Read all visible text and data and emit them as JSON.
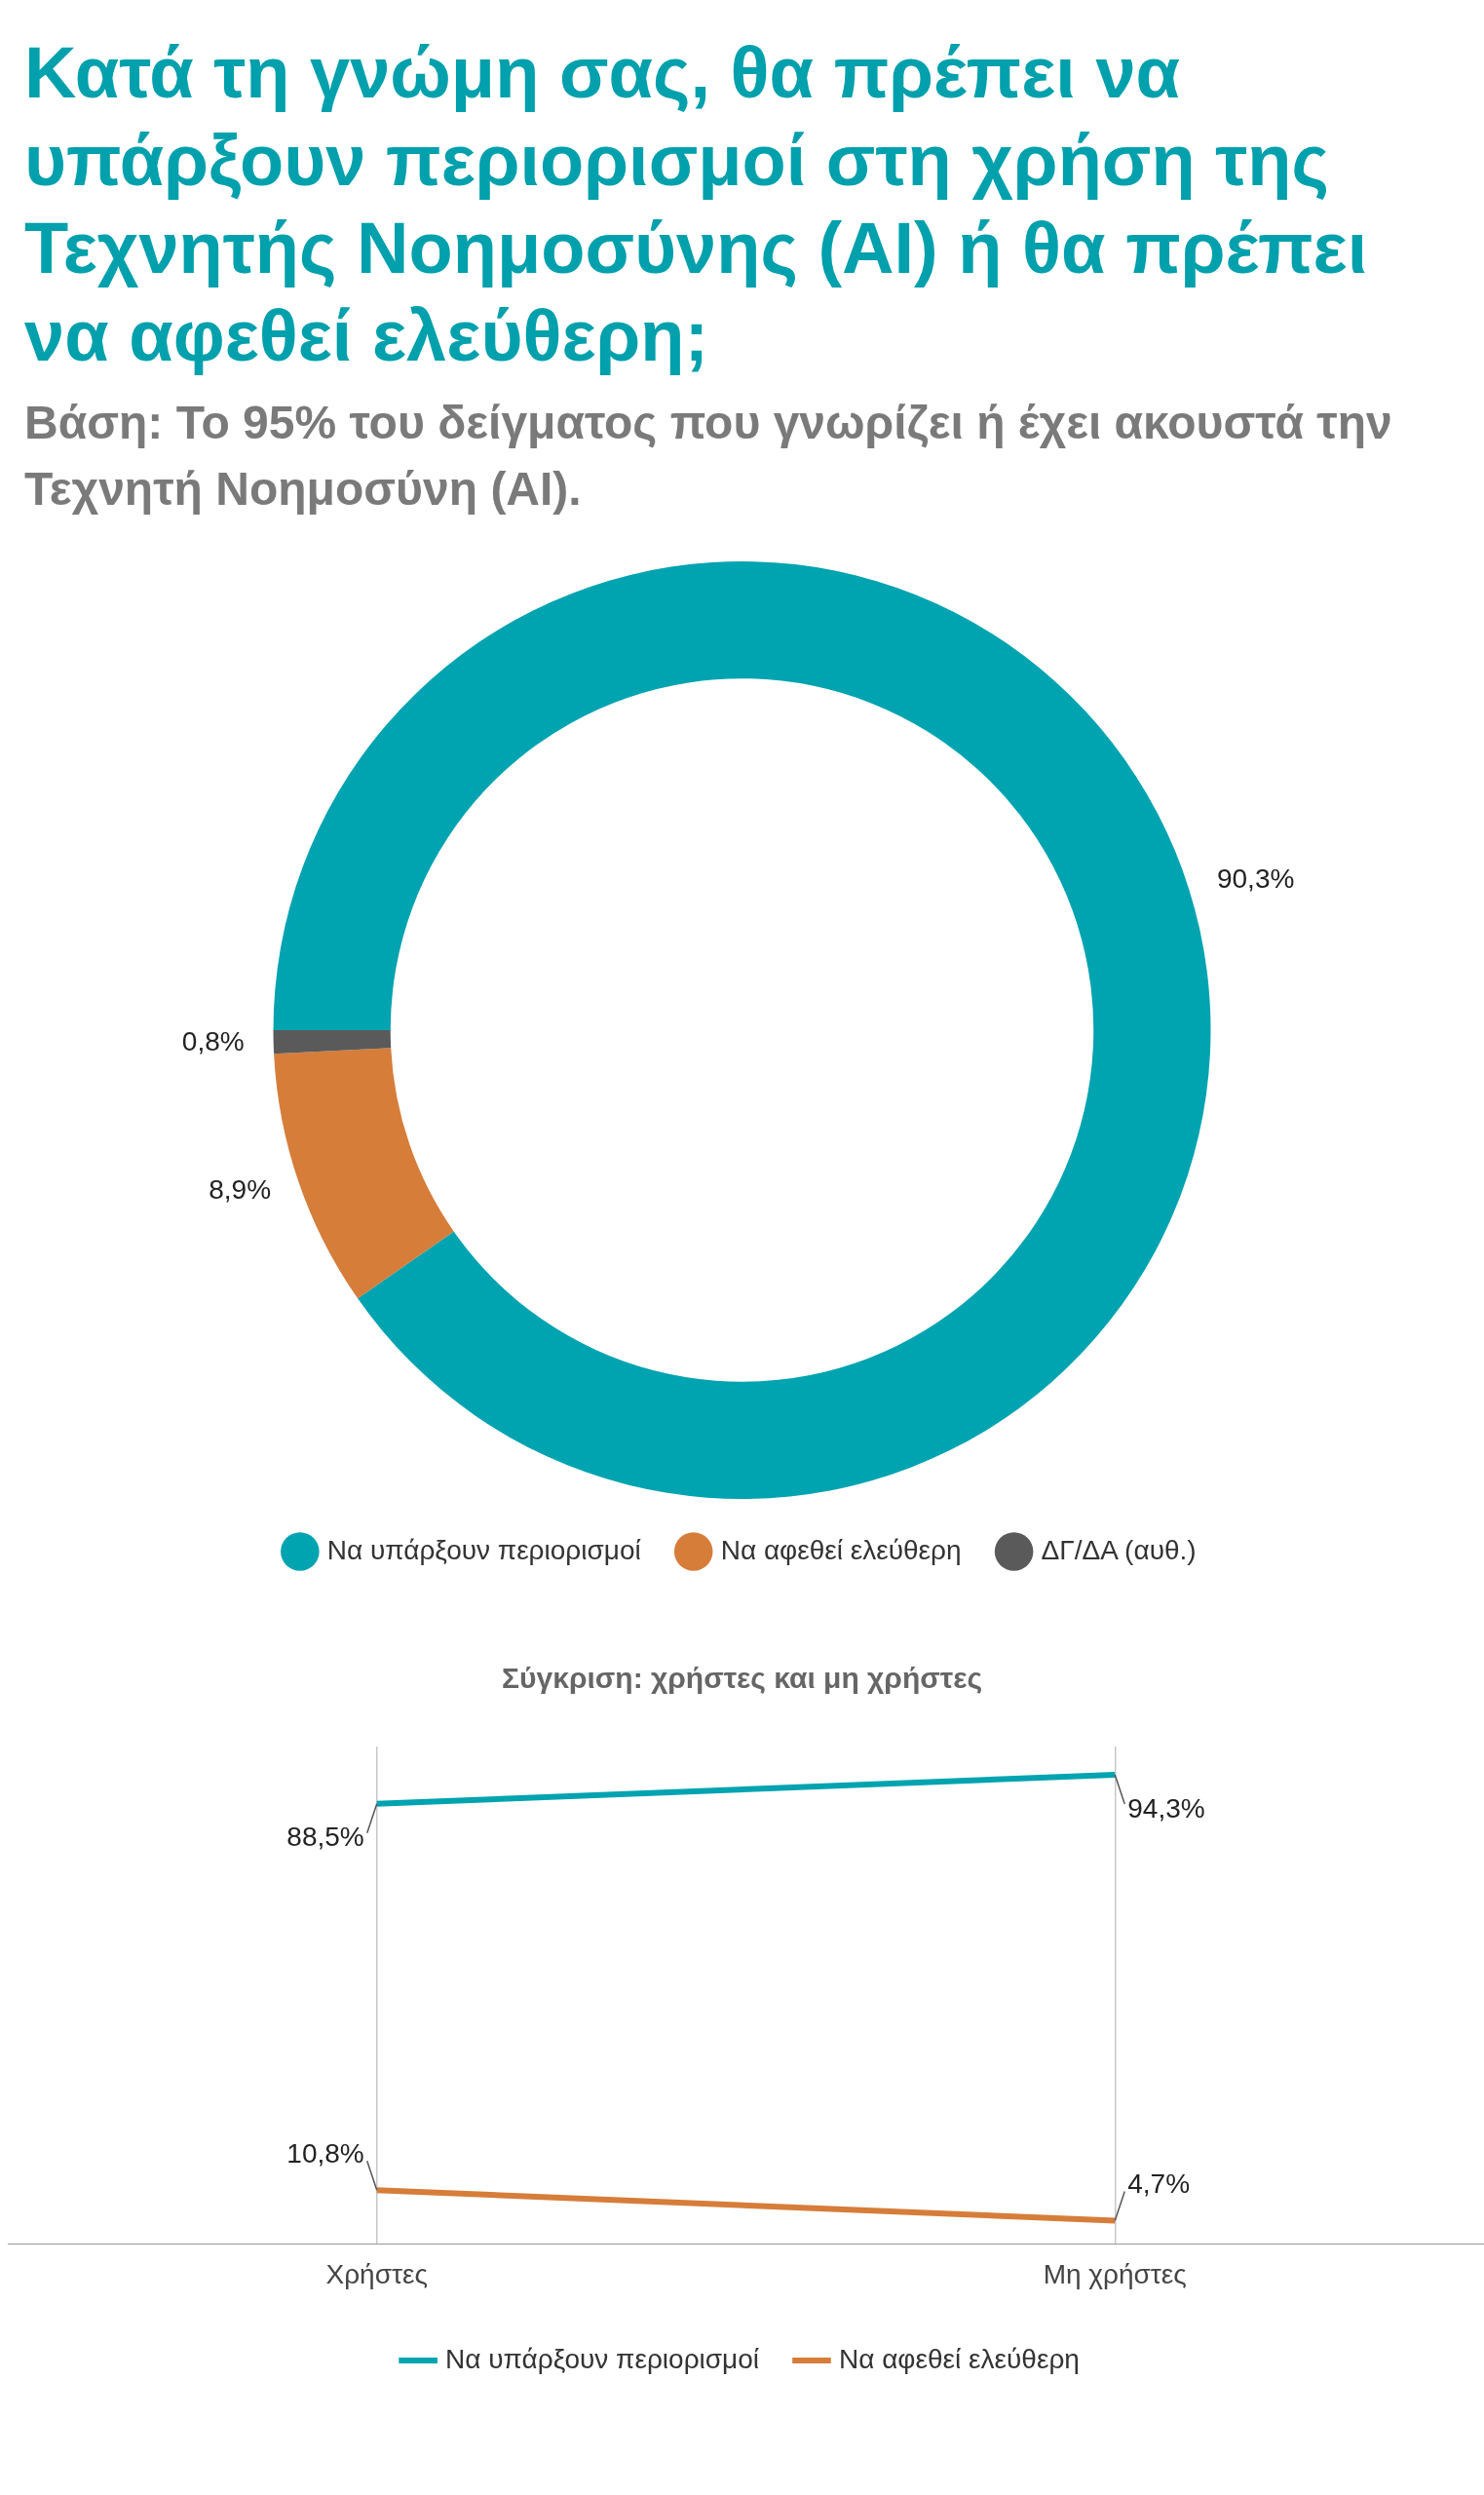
{
  "chart_data": [
    {
      "type": "donut",
      "title": "Κατά τη γνώμη σας, θα πρέπει να υπάρξουν περιορισμοί στη χρήση της Τεχνητής Νοημοσύνης (AI) ή θα πρέπει να αφεθεί ελεύθερη;",
      "subtitle": "Βάση: Το 95% του δείγματος που γνωρίζει ή έχει ακουστά την Τεχνητή Νοημοσύνη (AI).",
      "categories": [
        "Να υπάρξουν περιορισμοί",
        "Να αφεθεί ελεύθερη",
        "ΔΓ/ΔΑ (αυθ.)"
      ],
      "values": [
        90.3,
        8.9,
        0.8
      ],
      "colors": [
        "#00a3b0",
        "#d67d3a",
        "#5a5a5a"
      ],
      "value_labels": [
        "90,3%",
        "8,9%",
        "0,8%"
      ],
      "legend": "bottom"
    },
    {
      "type": "line",
      "title": "Σύγκριση: χρήστες και μη χρήστες",
      "categories": [
        "Χρήστες",
        "Μη χρήστες"
      ],
      "series": [
        {
          "name": "Να υπάρξουν περιορισμοί",
          "color": "#00a3b0",
          "values": [
            88.5,
            94.3
          ],
          "value_labels": [
            "88,5%",
            "94,3%"
          ]
        },
        {
          "name": "Να αφεθεί ελεύθερη",
          "color": "#d67d3a",
          "values": [
            10.8,
            4.7
          ],
          "value_labels": [
            "10,8%",
            "4,7%"
          ]
        }
      ],
      "ylim": [
        0,
        100
      ],
      "tick_labels": "x",
      "grid": "x",
      "legend": "bottom",
      "marker": "none"
    }
  ]
}
